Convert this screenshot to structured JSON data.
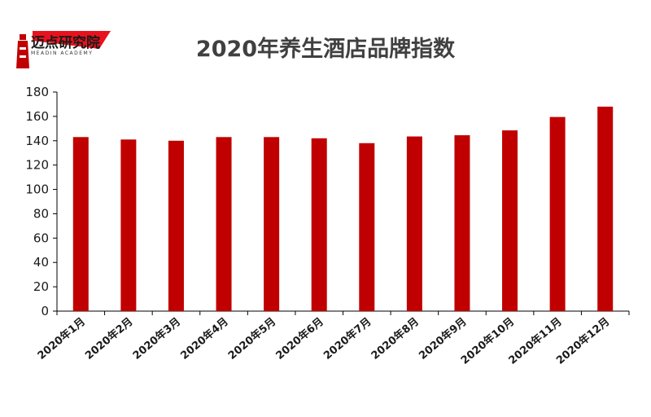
{
  "logo": {
    "name": "迈点研究院",
    "sub": "MEADIN ACADEMY"
  },
  "chart_data": {
    "type": "bar",
    "title": "2020年养生酒店品牌指数",
    "categories": [
      "2020年1月",
      "2020年2月",
      "2020年3月",
      "2020年4月",
      "2020年5月",
      "2020年6月",
      "2020年7月",
      "2020年8月",
      "2020年9月",
      "2020年10月",
      "2020年11月",
      "2020年12月"
    ],
    "values": [
      143,
      141,
      140,
      143,
      143,
      142,
      138,
      143.5,
      144.5,
      148.5,
      159.5,
      168
    ],
    "ylim": [
      0,
      180
    ],
    "yticks": [
      0,
      20,
      40,
      60,
      80,
      100,
      120,
      140,
      160,
      180
    ],
    "bar_color": "#C00000",
    "grid": false,
    "legend": "none"
  }
}
